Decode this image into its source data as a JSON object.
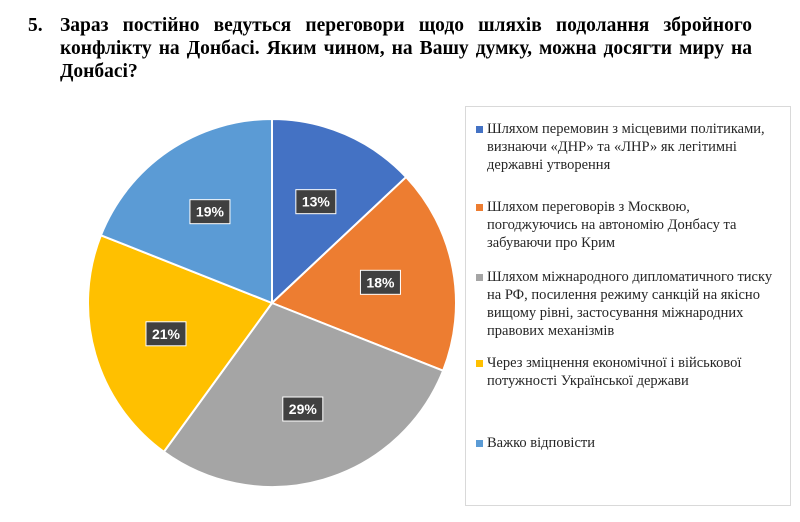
{
  "question": {
    "number": "5.",
    "text": "Зараз постійно ведуться переговори щодо шляхів подолання збройного конфлікту на Донбасі. Яким чином, на Вашу думку, можна досягти миру на Донбасі?"
  },
  "chart_data": {
    "type": "pie",
    "legend_position": "right",
    "slices": [
      {
        "label": "Шляхом перемовин з місцевими політиками,  визнаючи «ДНР» та «ЛНР» як легітимні державні утворення",
        "value": 13,
        "display": "13%",
        "color": "#4472C4"
      },
      {
        "label": "Шляхом переговорів з Москвою, погоджуючись на автономію Донбасу та забуваючи про Крим",
        "value": 18,
        "display": "18%",
        "color": "#ED7D31"
      },
      {
        "label": "Шляхом міжнародного дипломатичного тиску на РФ, посилення режиму санкцій на якісно вищому рівні, застосування міжнародних правових механізмів",
        "value": 29,
        "display": "29%",
        "color": "#A5A5A5"
      },
      {
        "label": "Через зміцнення економічної і військової потужності Української держави",
        "value": 21,
        "display": "21%",
        "color": "#FFC000"
      },
      {
        "label": "Важко відповісти",
        "value": 19,
        "display": "19%",
        "color": "#5B9BD5"
      }
    ]
  }
}
